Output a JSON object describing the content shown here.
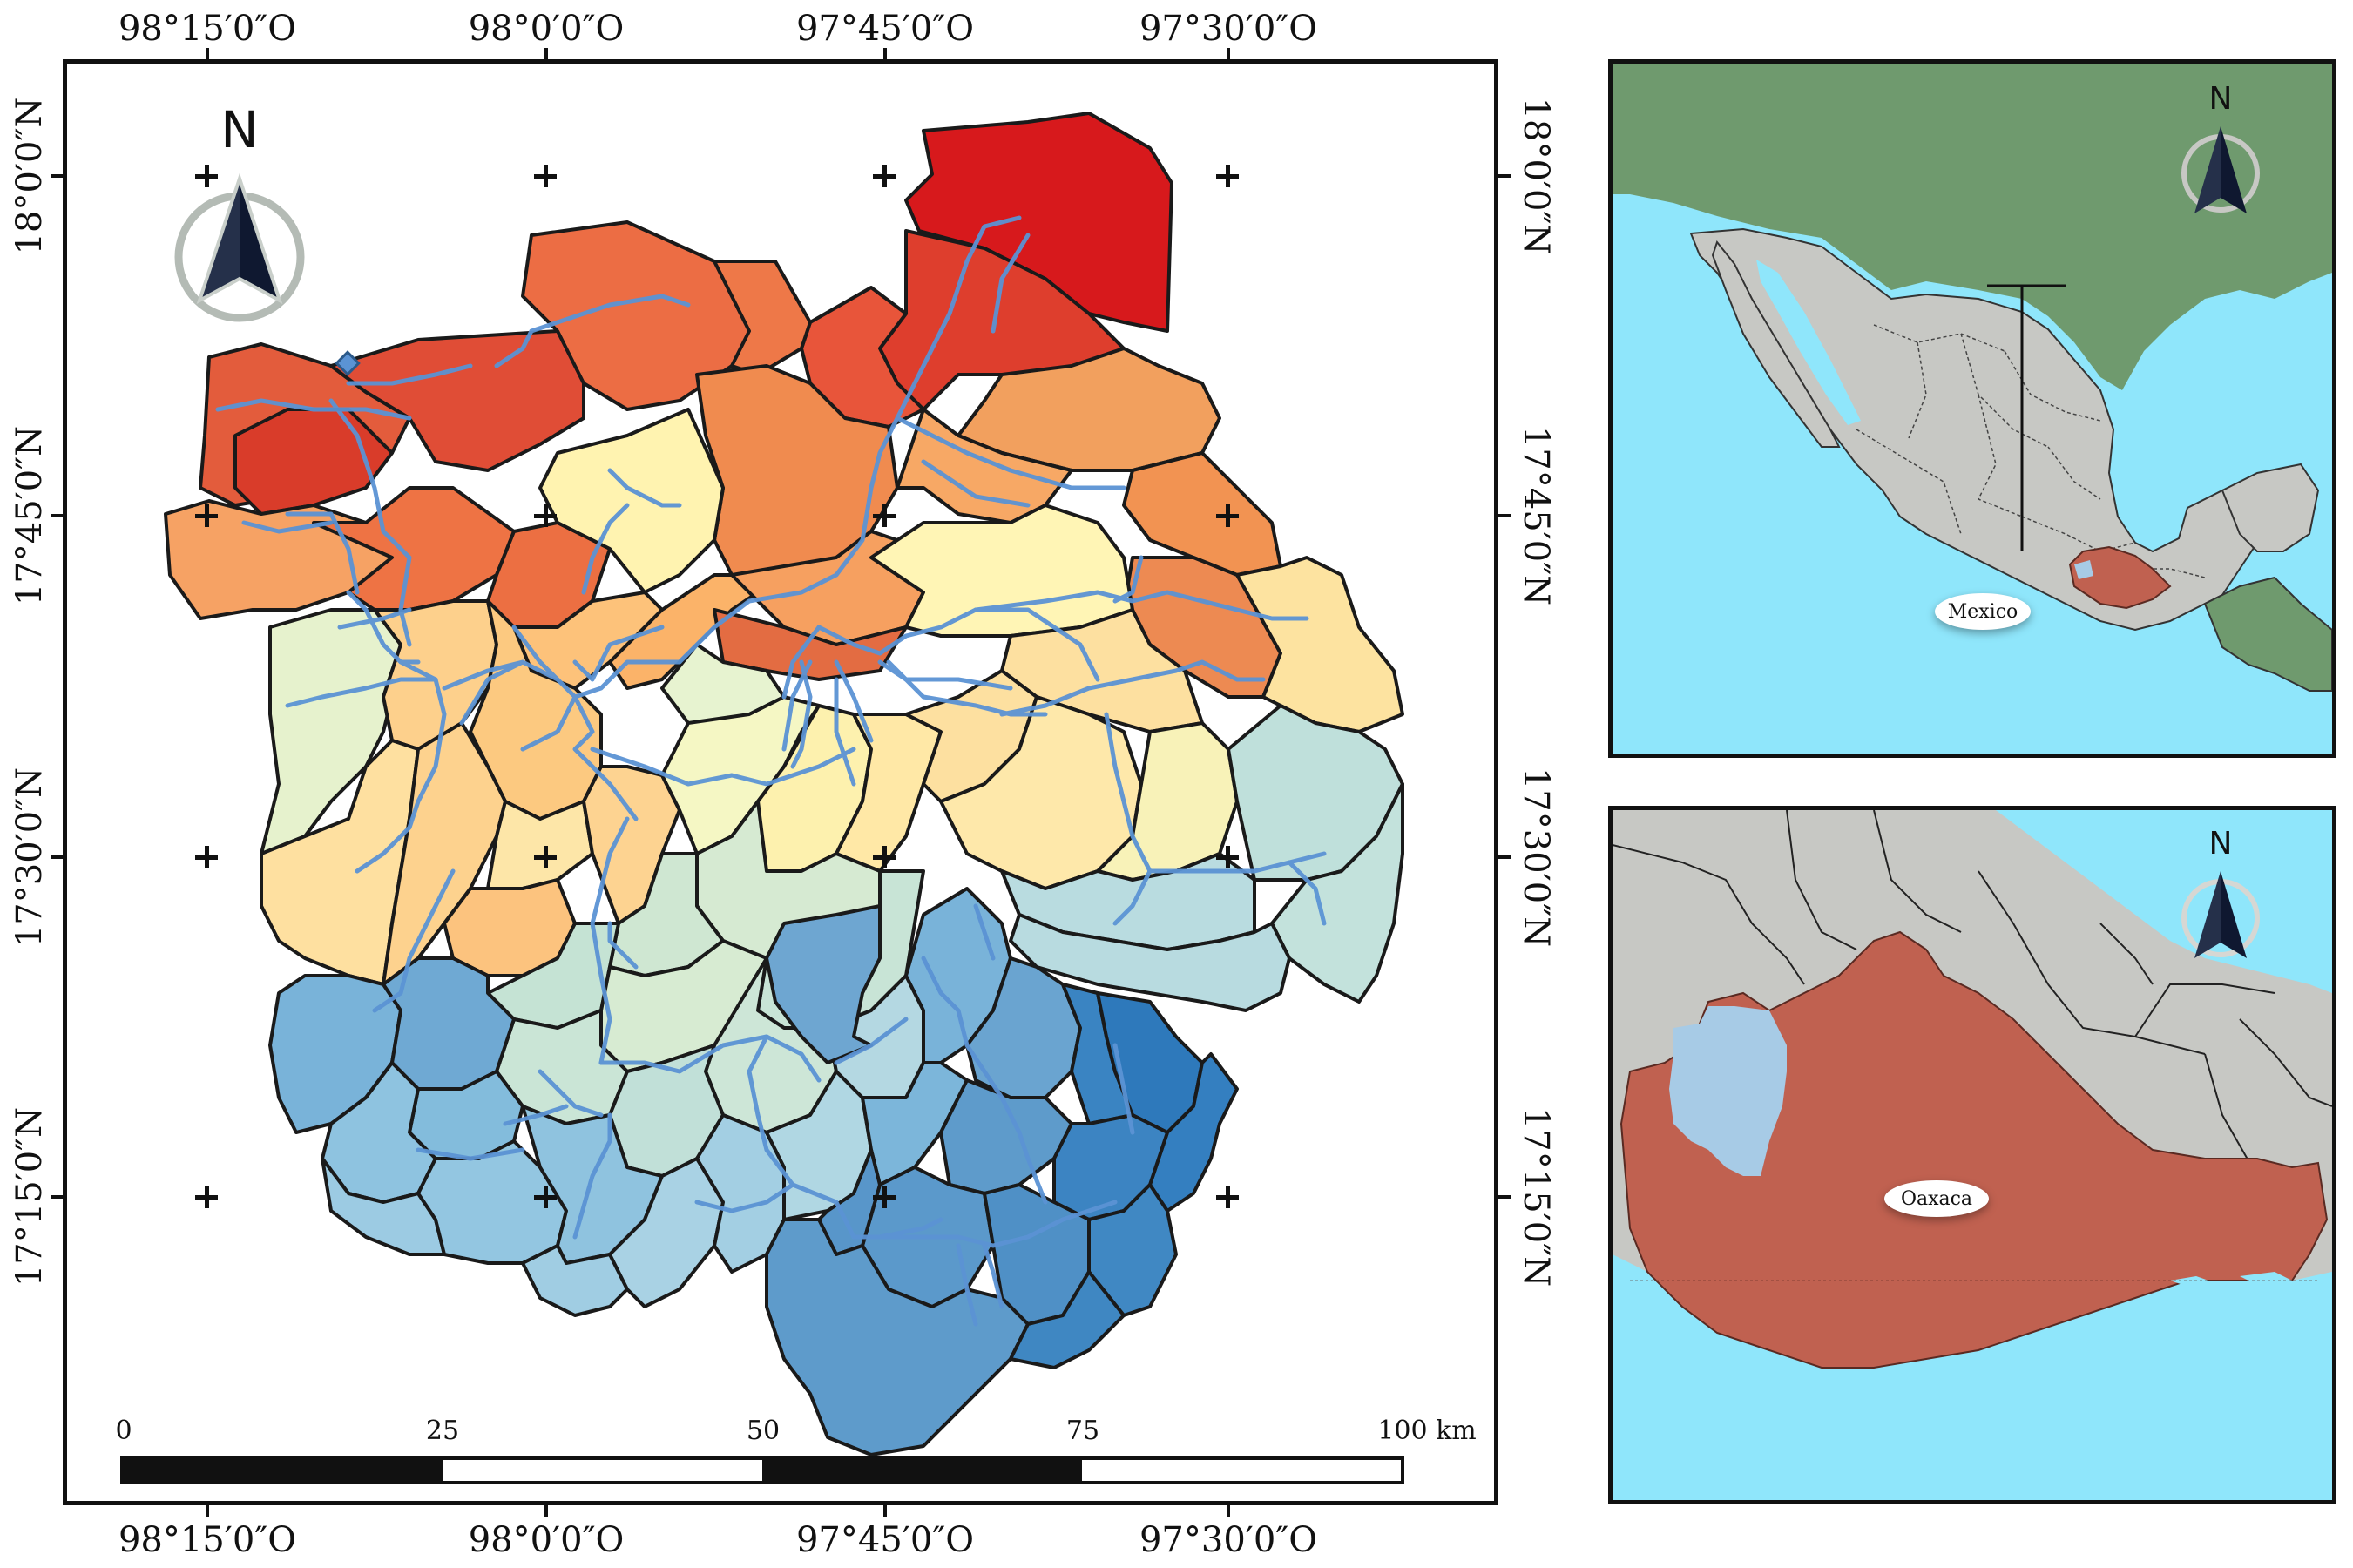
{
  "main_map": {
    "lon_labels": [
      "98°15′0″O",
      "98°0′0″O",
      "97°45′0″O",
      "97°30′0″O"
    ],
    "lat_labels": [
      "18°0′0″N",
      "17°45′0″N",
      "17°30′0″N",
      "17°15′0″N"
    ],
    "north_label": "N",
    "scale_bar": {
      "ticks": [
        "0",
        "25",
        "50",
        "75",
        "100 km"
      ]
    },
    "legend_colors": [
      "#d7191c",
      "#e8553a",
      "#f08b4f",
      "#fdbe74",
      "#fff1ab",
      "#e3f1cf",
      "#c7e6d6",
      "#a7d3e0",
      "#79b3d9",
      "#3a84c2"
    ]
  },
  "inset_mexico": {
    "north_label": "N",
    "callout_label": "Mexico",
    "colors": {
      "water": "#8fe6fb",
      "land_usa": "#6f9a6e",
      "land_mexico": "#c7c8c4",
      "oaxaca": "#c06150"
    }
  },
  "inset_oaxaca": {
    "north_label": "N",
    "state_label": "Oaxaca",
    "colors": {
      "water": "#8fe6fb",
      "land": "#c7c8c4",
      "oaxaca": "#c06150",
      "basin": "#a7cbe6"
    }
  }
}
